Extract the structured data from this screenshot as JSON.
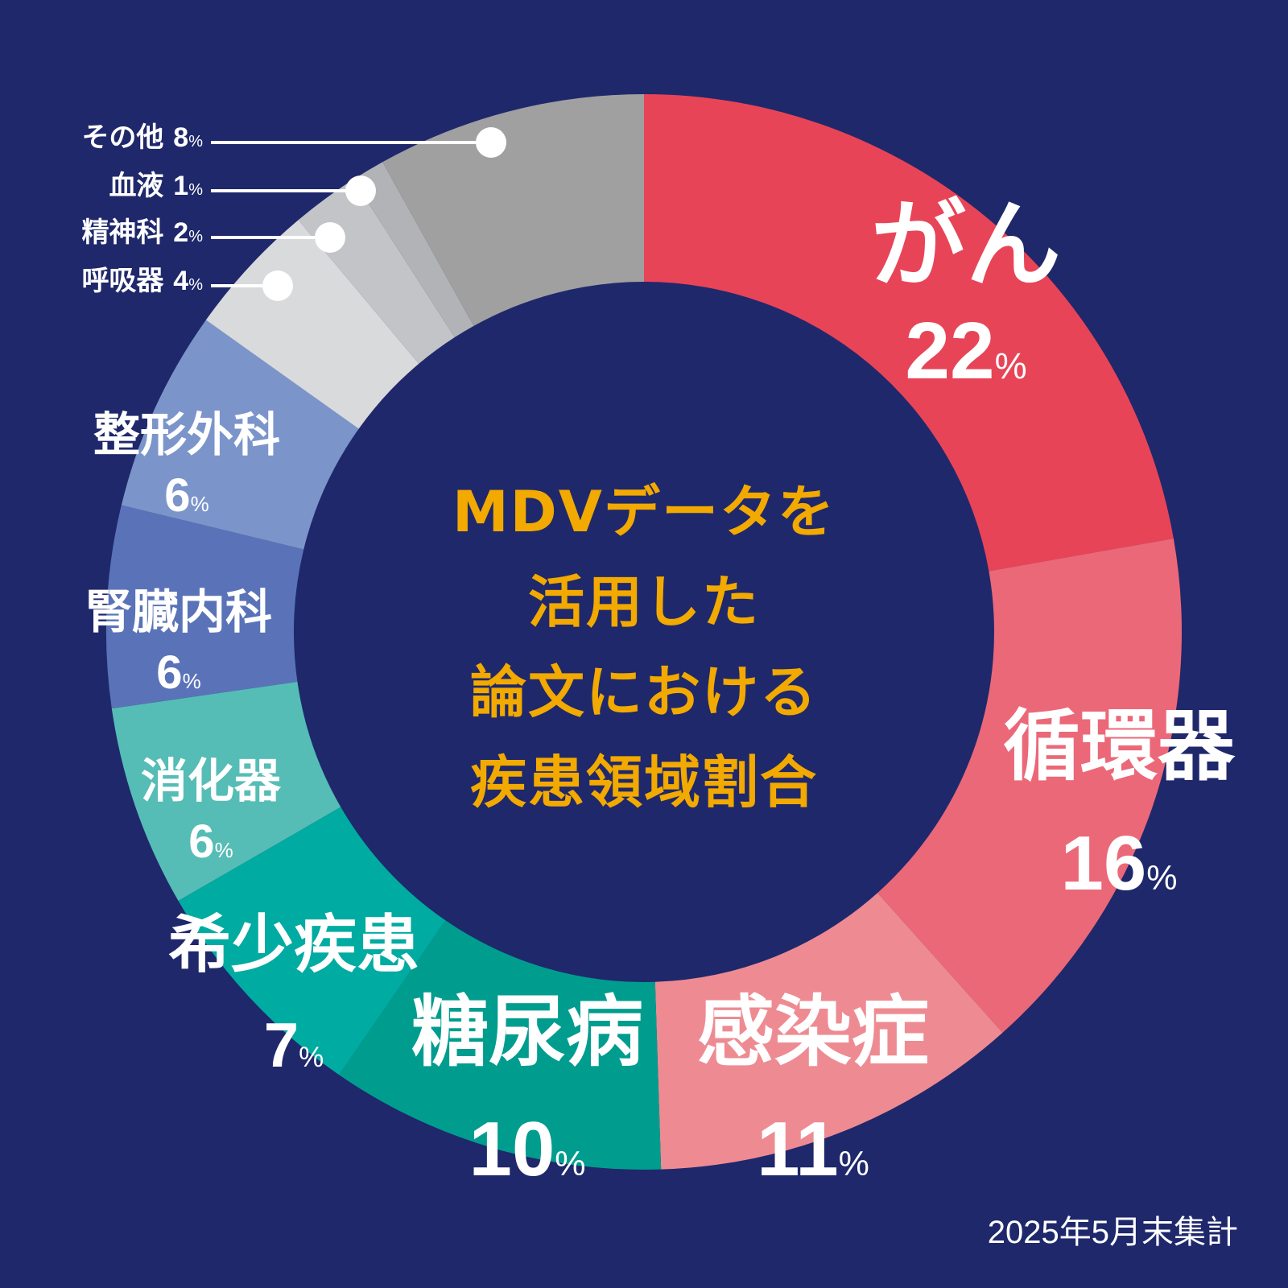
{
  "center_title": [
    "MDVデータを",
    "活用した",
    "論文における",
    "疾患領域割合"
  ],
  "footnote": "2025年5月末集計",
  "colors": {
    "background": "#1f286b",
    "title": "#f2a900",
    "text": "#ffffff"
  },
  "chart_data": {
    "type": "pie",
    "style": "donut",
    "start": "top",
    "direction": "clockwise",
    "unit": "%",
    "slices": [
      {
        "label": "がん",
        "value": 22,
        "color": "#e84457"
      },
      {
        "label": "循環器",
        "value": 16,
        "color": "#eb6878"
      },
      {
        "label": "感染症",
        "value": 11,
        "color": "#ee8b92"
      },
      {
        "label": "糖尿病",
        "value": 10,
        "color": "#009d8f"
      },
      {
        "label": "希少疾患",
        "value": 7,
        "color": "#00aba1"
      },
      {
        "label": "消化器",
        "value": 6,
        "color": "#55bdb5"
      },
      {
        "label": "腎臓内科",
        "value": 6,
        "color": "#5a73b8"
      },
      {
        "label": "整形外科",
        "value": 6,
        "color": "#7b95cb"
      },
      {
        "label": "呼吸器",
        "value": 4,
        "color": "#d8dadb"
      },
      {
        "label": "精神科",
        "value": 2,
        "color": "#c2c4c7"
      },
      {
        "label": "血液",
        "value": 1,
        "color": "#b2b3b6"
      },
      {
        "label": "その他",
        "value": 8,
        "color": "#a0a0a0"
      }
    ]
  }
}
